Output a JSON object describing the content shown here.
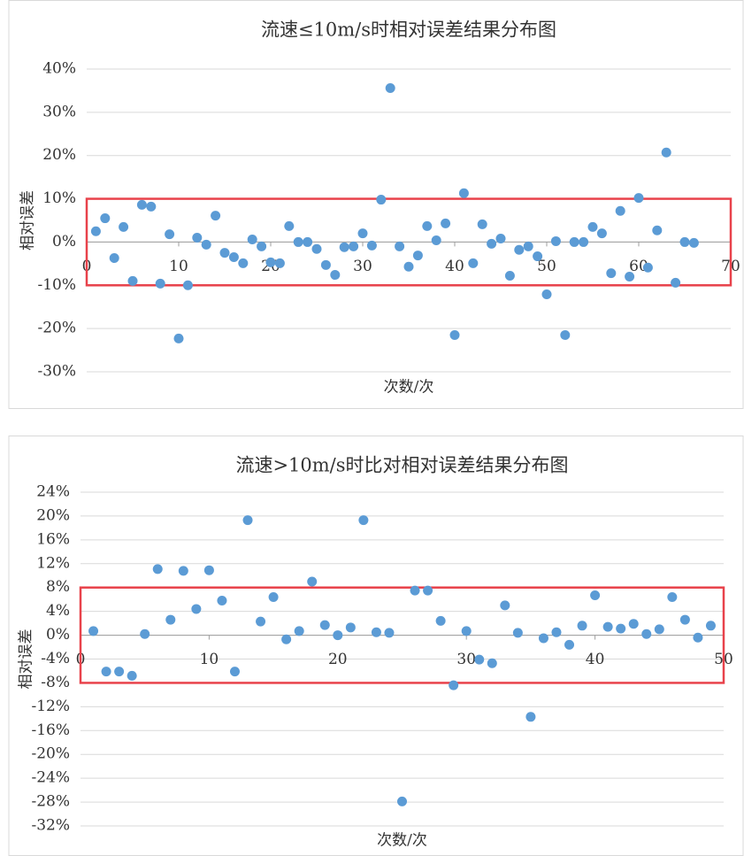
{
  "chart_data": [
    {
      "type": "scatter",
      "title": "流速≤10m/s时相对误差结果分布图",
      "xlabel": "次数/次",
      "ylabel": "相对误差",
      "color": "#5b9bd5",
      "x": [
        1,
        2,
        3,
        4,
        5,
        6,
        7,
        8,
        9,
        10,
        11,
        12,
        13,
        14,
        15,
        16,
        17,
        18,
        19,
        20,
        21,
        22,
        23,
        24,
        25,
        26,
        27,
        28,
        29,
        30,
        31,
        32,
        33,
        34,
        35,
        36,
        37,
        38,
        39,
        40,
        41,
        42,
        43,
        44,
        45,
        46,
        47,
        48,
        49,
        50,
        51,
        52,
        53,
        54,
        55,
        56,
        57,
        58,
        59,
        60,
        61,
        62,
        63,
        64,
        65,
        66
      ],
      "values": [
        2.5,
        5.5,
        -3.7,
        3.5,
        -9,
        8.6,
        8.2,
        -9.6,
        1.8,
        -22.3,
        -10,
        1,
        -0.6,
        6.1,
        -2.5,
        -3.5,
        -4.9,
        0.6,
        -1,
        -4.7,
        -4.9,
        3.7,
        0,
        0,
        -1.6,
        -5.3,
        -7.6,
        -1.2,
        -1,
        2,
        -0.8,
        9.8,
        35.6,
        -1,
        -5.7,
        -3.1,
        3.7,
        0.4,
        4.3,
        -21.5,
        11.3,
        -4.9,
        4.1,
        -0.4,
        0.8,
        -7.8,
        -1.8,
        -1,
        -3.3,
        -12.1,
        0.2,
        -21.5,
        0,
        0,
        3.5,
        2,
        -7.2,
        7.2,
        -8,
        10.2,
        -5.9,
        2.7,
        20.7,
        -9.4,
        0,
        -0.2
      ],
      "xlim": [
        0,
        70
      ],
      "xticks": [
        0,
        10,
        20,
        30,
        40,
        50,
        60,
        70
      ],
      "ylim": [
        -30,
        40
      ],
      "yticks": [
        {
          "value": -30,
          "label": "-30%"
        },
        {
          "value": -20,
          "label": "-20%"
        },
        {
          "value": -10,
          "label": "-10%"
        },
        {
          "value": 0,
          "label": "0%"
        },
        {
          "value": 10,
          "label": "10%"
        },
        {
          "value": 20,
          "label": "20%"
        },
        {
          "value": 30,
          "label": "30%"
        },
        {
          "value": 40,
          "label": "40%"
        }
      ],
      "grid": true,
      "highlight": {
        "x": [
          0,
          70
        ],
        "y": [
          -10,
          10
        ],
        "color": "#e8424b"
      }
    },
    {
      "type": "scatter",
      "title": "流速>10m/s时比对相对误差结果分布图",
      "xlabel": "次数/次",
      "ylabel": "相对误差",
      "color": "#5b9bd5",
      "x": [
        1,
        2,
        3,
        4,
        5,
        6,
        7,
        8,
        9,
        10,
        11,
        12,
        13,
        14,
        15,
        16,
        17,
        18,
        19,
        20,
        21,
        22,
        23,
        24,
        25,
        26,
        27,
        28,
        29,
        30,
        31,
        32,
        33,
        34,
        35,
        36,
        37,
        38,
        39,
        40,
        41,
        42,
        43,
        44,
        45,
        46,
        47,
        48,
        49
      ],
      "values": [
        0.7,
        -6.1,
        -6.1,
        -6.8,
        0.2,
        11.1,
        2.6,
        10.8,
        4.4,
        10.9,
        5.8,
        -6.1,
        19.3,
        2.3,
        6.4,
        -0.7,
        0.7,
        9,
        1.7,
        0,
        1.3,
        19.3,
        0.5,
        0.4,
        -27.9,
        7.5,
        7.5,
        2.4,
        -8.4,
        0.7,
        -4.1,
        -4.7,
        5,
        0.4,
        -13.7,
        -0.5,
        0.5,
        -1.6,
        1.6,
        6.7,
        1.4,
        1.1,
        1.9,
        0.2,
        1,
        6.4,
        2.6,
        -0.4,
        1.6
      ],
      "xlim": [
        0,
        50
      ],
      "xticks": [
        0,
        10,
        20,
        30,
        40,
        50
      ],
      "ylim": [
        -32,
        24
      ],
      "yticks": [
        {
          "value": -32,
          "label": "-32%"
        },
        {
          "value": -28,
          "label": "-28%"
        },
        {
          "value": -24,
          "label": "-24%"
        },
        {
          "value": -20,
          "label": "-20%"
        },
        {
          "value": -16,
          "label": "-16%"
        },
        {
          "value": -12,
          "label": "-12%"
        },
        {
          "value": -8,
          "label": "-8%"
        },
        {
          "value": -4,
          "label": "-4%"
        },
        {
          "value": 0,
          "label": "0%"
        },
        {
          "value": 4,
          "label": "4%"
        },
        {
          "value": 8,
          "label": "8%"
        },
        {
          "value": 12,
          "label": "12%"
        },
        {
          "value": 16,
          "label": "16%"
        },
        {
          "value": 20,
          "label": "20%"
        },
        {
          "value": 24,
          "label": "24%"
        }
      ],
      "grid": true,
      "highlight": {
        "x": [
          0,
          50
        ],
        "y": [
          -8,
          8
        ],
        "color": "#e8424b"
      }
    }
  ]
}
